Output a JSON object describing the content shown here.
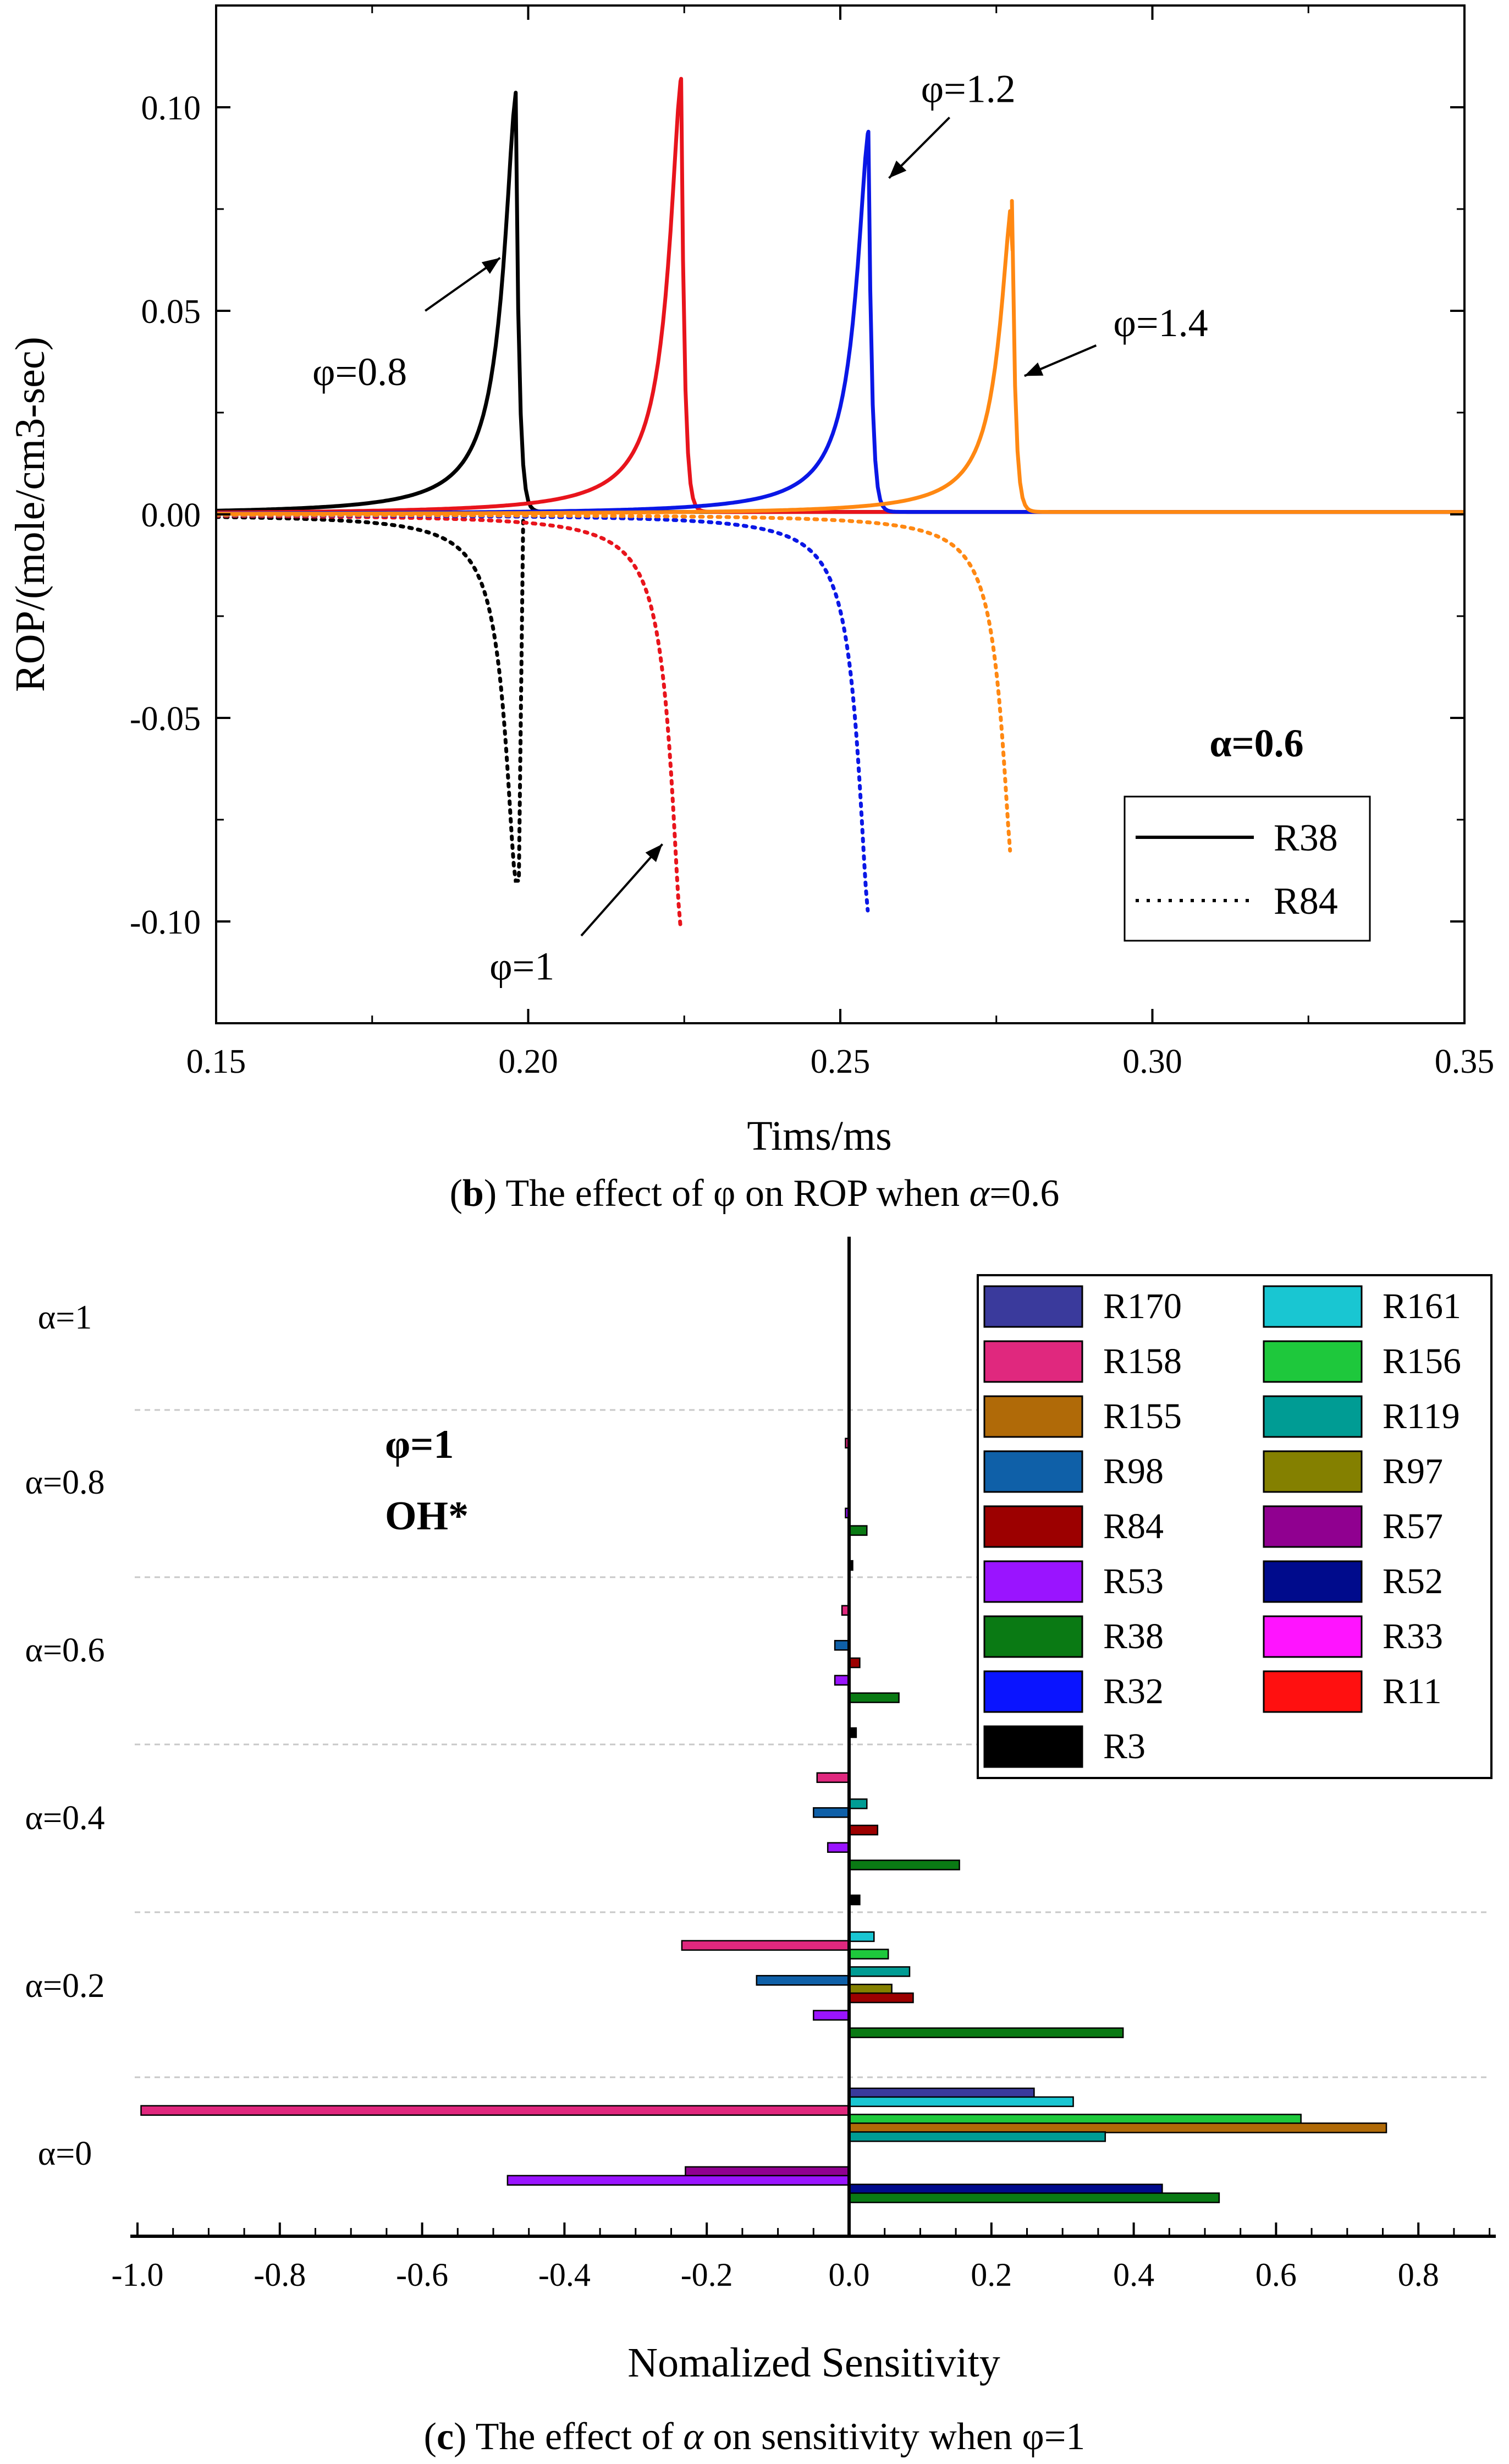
{
  "chart_data": [
    {
      "type": "line",
      "panel_label": "b",
      "caption": {
        "label": "b",
        "text_before": " The effect of φ on ROP when ",
        "alpha_symbol": "α",
        "text_after": "=0.6"
      },
      "xlabel": "Tims/ms",
      "ylabel": "ROP/(mole/cm3-sec)",
      "xlim": [
        0.15,
        0.35
      ],
      "ylim": [
        -0.125,
        0.125
      ],
      "xticks": [
        0.15,
        0.2,
        0.25,
        0.3,
        0.35
      ],
      "xtick_labels": [
        "0.15",
        "0.20",
        "0.25",
        "0.30",
        "0.35"
      ],
      "yticks": [
        0.1,
        0.05,
        0.0,
        -0.05,
        -0.1
      ],
      "ytick_labels": [
        "0.10",
        "0.05",
        "0.00",
        "-0.05",
        "-0.10"
      ],
      "condition_label": "α=0.6",
      "legend": [
        {
          "name": "R38",
          "style": "solid"
        },
        {
          "name": "R84",
          "style": "dotted"
        }
      ],
      "series": [
        {
          "phi": "φ=0.8",
          "color": "#000000",
          "t_peak": 0.198,
          "R38_peak": 0.103,
          "R84_peak": -0.09
        },
        {
          "phi": "φ=1",
          "color": "#e8141c",
          "t_peak": 0.2245,
          "R38_peak": 0.107,
          "R84_peak": -0.102
        },
        {
          "phi": "φ=1.2",
          "color": "#0a17e6",
          "t_peak": 0.2545,
          "R38_peak": 0.094,
          "R84_peak": -0.098
        },
        {
          "phi": "φ=1.4",
          "color": "#ff8812",
          "t_peak": 0.2775,
          "R38_peak": 0.077,
          "R84_peak": -0.086
        }
      ],
      "annotations": [
        {
          "text": "φ=0.8",
          "t": 0.198,
          "value": 0.062
        },
        {
          "text": "φ=1",
          "t": 0.2235,
          "value": -0.082
        },
        {
          "text": "φ=1.2",
          "t": 0.2545,
          "value": 0.083
        },
        {
          "text": "φ=1.4",
          "t": 0.278,
          "value": 0.035
        }
      ]
    },
    {
      "type": "bar",
      "orientation": "horizontal",
      "panel_label": "c",
      "caption": {
        "label": "c",
        "text_before": " The effect of ",
        "alpha_symbol": "α",
        "text_after": " on sensitivity when φ=1"
      },
      "xlabel": "Nomalized Sensitivity",
      "xlim": [
        -1.0,
        0.9
      ],
      "xticks": [
        -1.0,
        -0.8,
        -0.6,
        -0.4,
        -0.2,
        0.0,
        0.2,
        0.4,
        0.6,
        0.8
      ],
      "xtick_labels": [
        "-1.0",
        "-0.8",
        "-0.6",
        "-0.4",
        "-0.2",
        "0.0",
        "0.2",
        "0.4",
        "0.6",
        "0.8"
      ],
      "groups": [
        "α=0",
        "α=0.2",
        "α=0.4",
        "α=0.6",
        "α=0.8",
        "α=1"
      ],
      "condition_label": [
        "φ=1",
        "OH*"
      ],
      "reactions": [
        "R170",
        "R161",
        "R158",
        "R156",
        "R155",
        "R119",
        "R98",
        "R97",
        "R84",
        "R57",
        "R53",
        "R52",
        "R38",
        "R33",
        "R32",
        "R11",
        "R3"
      ],
      "colors": {
        "R170": "#3a3a9c",
        "R161": "#19c6d2",
        "R158": "#e0287e",
        "R156": "#1ec83c",
        "R155": "#b06a08",
        "R119": "#009c94",
        "R98": "#0f60a8",
        "R97": "#848000",
        "R84": "#9c0000",
        "R57": "#900090",
        "R53": "#9a14ff",
        "R52": "#000b8c",
        "R38": "#0a7a14",
        "R33": "#ff14ff",
        "R32": "#0a14ff",
        "R11": "#ff1010",
        "R3": "#000000"
      },
      "series": [
        {
          "name": "R170",
          "values": [
            0.26,
            0.0,
            0.0,
            0.0,
            0.0,
            0.0
          ]
        },
        {
          "name": "R161",
          "values": [
            0.315,
            0.035,
            0.0,
            0.0,
            0.0,
            0.0
          ]
        },
        {
          "name": "R158",
          "values": [
            -0.995,
            -0.235,
            -0.045,
            -0.01,
            -0.005,
            0.0
          ]
        },
        {
          "name": "R156",
          "values": [
            0.635,
            0.055,
            0.0,
            0.0,
            0.0,
            0.0
          ]
        },
        {
          "name": "R155",
          "values": [
            0.755,
            0.0,
            0.0,
            0.0,
            0.0,
            0.0
          ]
        },
        {
          "name": "R119",
          "values": [
            0.36,
            0.085,
            0.025,
            0.0,
            0.0,
            0.0
          ]
        },
        {
          "name": "R98",
          "values": [
            0.0,
            -0.13,
            -0.05,
            -0.02,
            0.0,
            0.0
          ]
        },
        {
          "name": "R97",
          "values": [
            0.0,
            0.06,
            0.0,
            0.0,
            0.0,
            0.0
          ]
        },
        {
          "name": "R84",
          "values": [
            0.0,
            0.09,
            0.04,
            0.015,
            0.0,
            0.0
          ]
        },
        {
          "name": "R57",
          "values": [
            -0.23,
            0.0,
            0.0,
            0.0,
            0.0,
            0.0
          ]
        },
        {
          "name": "R53",
          "values": [
            -0.48,
            -0.05,
            -0.03,
            -0.02,
            -0.005,
            0.0
          ]
        },
        {
          "name": "R52",
          "values": [
            0.44,
            0.0,
            0.0,
            0.0,
            0.0,
            0.0
          ]
        },
        {
          "name": "R38",
          "values": [
            0.52,
            0.385,
            0.155,
            0.07,
            0.025,
            0.0
          ]
        },
        {
          "name": "R33",
          "values": [
            0.0,
            0.0,
            0.0,
            0.0,
            0.0,
            0.0
          ]
        },
        {
          "name": "R32",
          "values": [
            0.0,
            0.0,
            0.0,
            0.0,
            0.0,
            0.0
          ]
        },
        {
          "name": "R11",
          "values": [
            0.0,
            0.0,
            0.0,
            0.0,
            0.0,
            0.0
          ]
        },
        {
          "name": "R3",
          "values": [
            0.0,
            0.0,
            0.015,
            0.01,
            0.005,
            0.0
          ]
        }
      ]
    }
  ]
}
